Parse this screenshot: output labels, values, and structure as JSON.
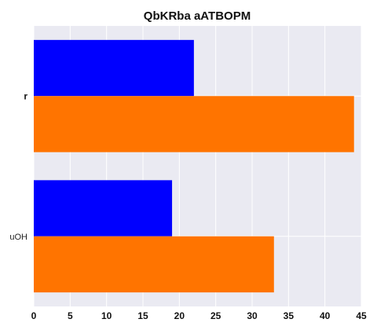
{
  "chart_data": {
    "type": "bar",
    "orientation": "horizontal",
    "title": "QbKRba aATBOPM",
    "xlabel": "",
    "ylabel": "",
    "categories": [
      "r",
      "uOH"
    ],
    "series": [
      {
        "values": [
          22,
          19
        ],
        "color": "#0000ff"
      },
      {
        "values": [
          44,
          33
        ],
        "color": "#ff7400"
      }
    ],
    "xlim": [
      0,
      45
    ],
    "xticks": [
      0,
      5,
      10,
      15,
      20,
      25,
      30,
      35,
      40,
      45
    ],
    "grid": true,
    "legend": "none"
  },
  "colors": {
    "plot_background": "#eaeaf2",
    "grid": "#ffffff"
  }
}
